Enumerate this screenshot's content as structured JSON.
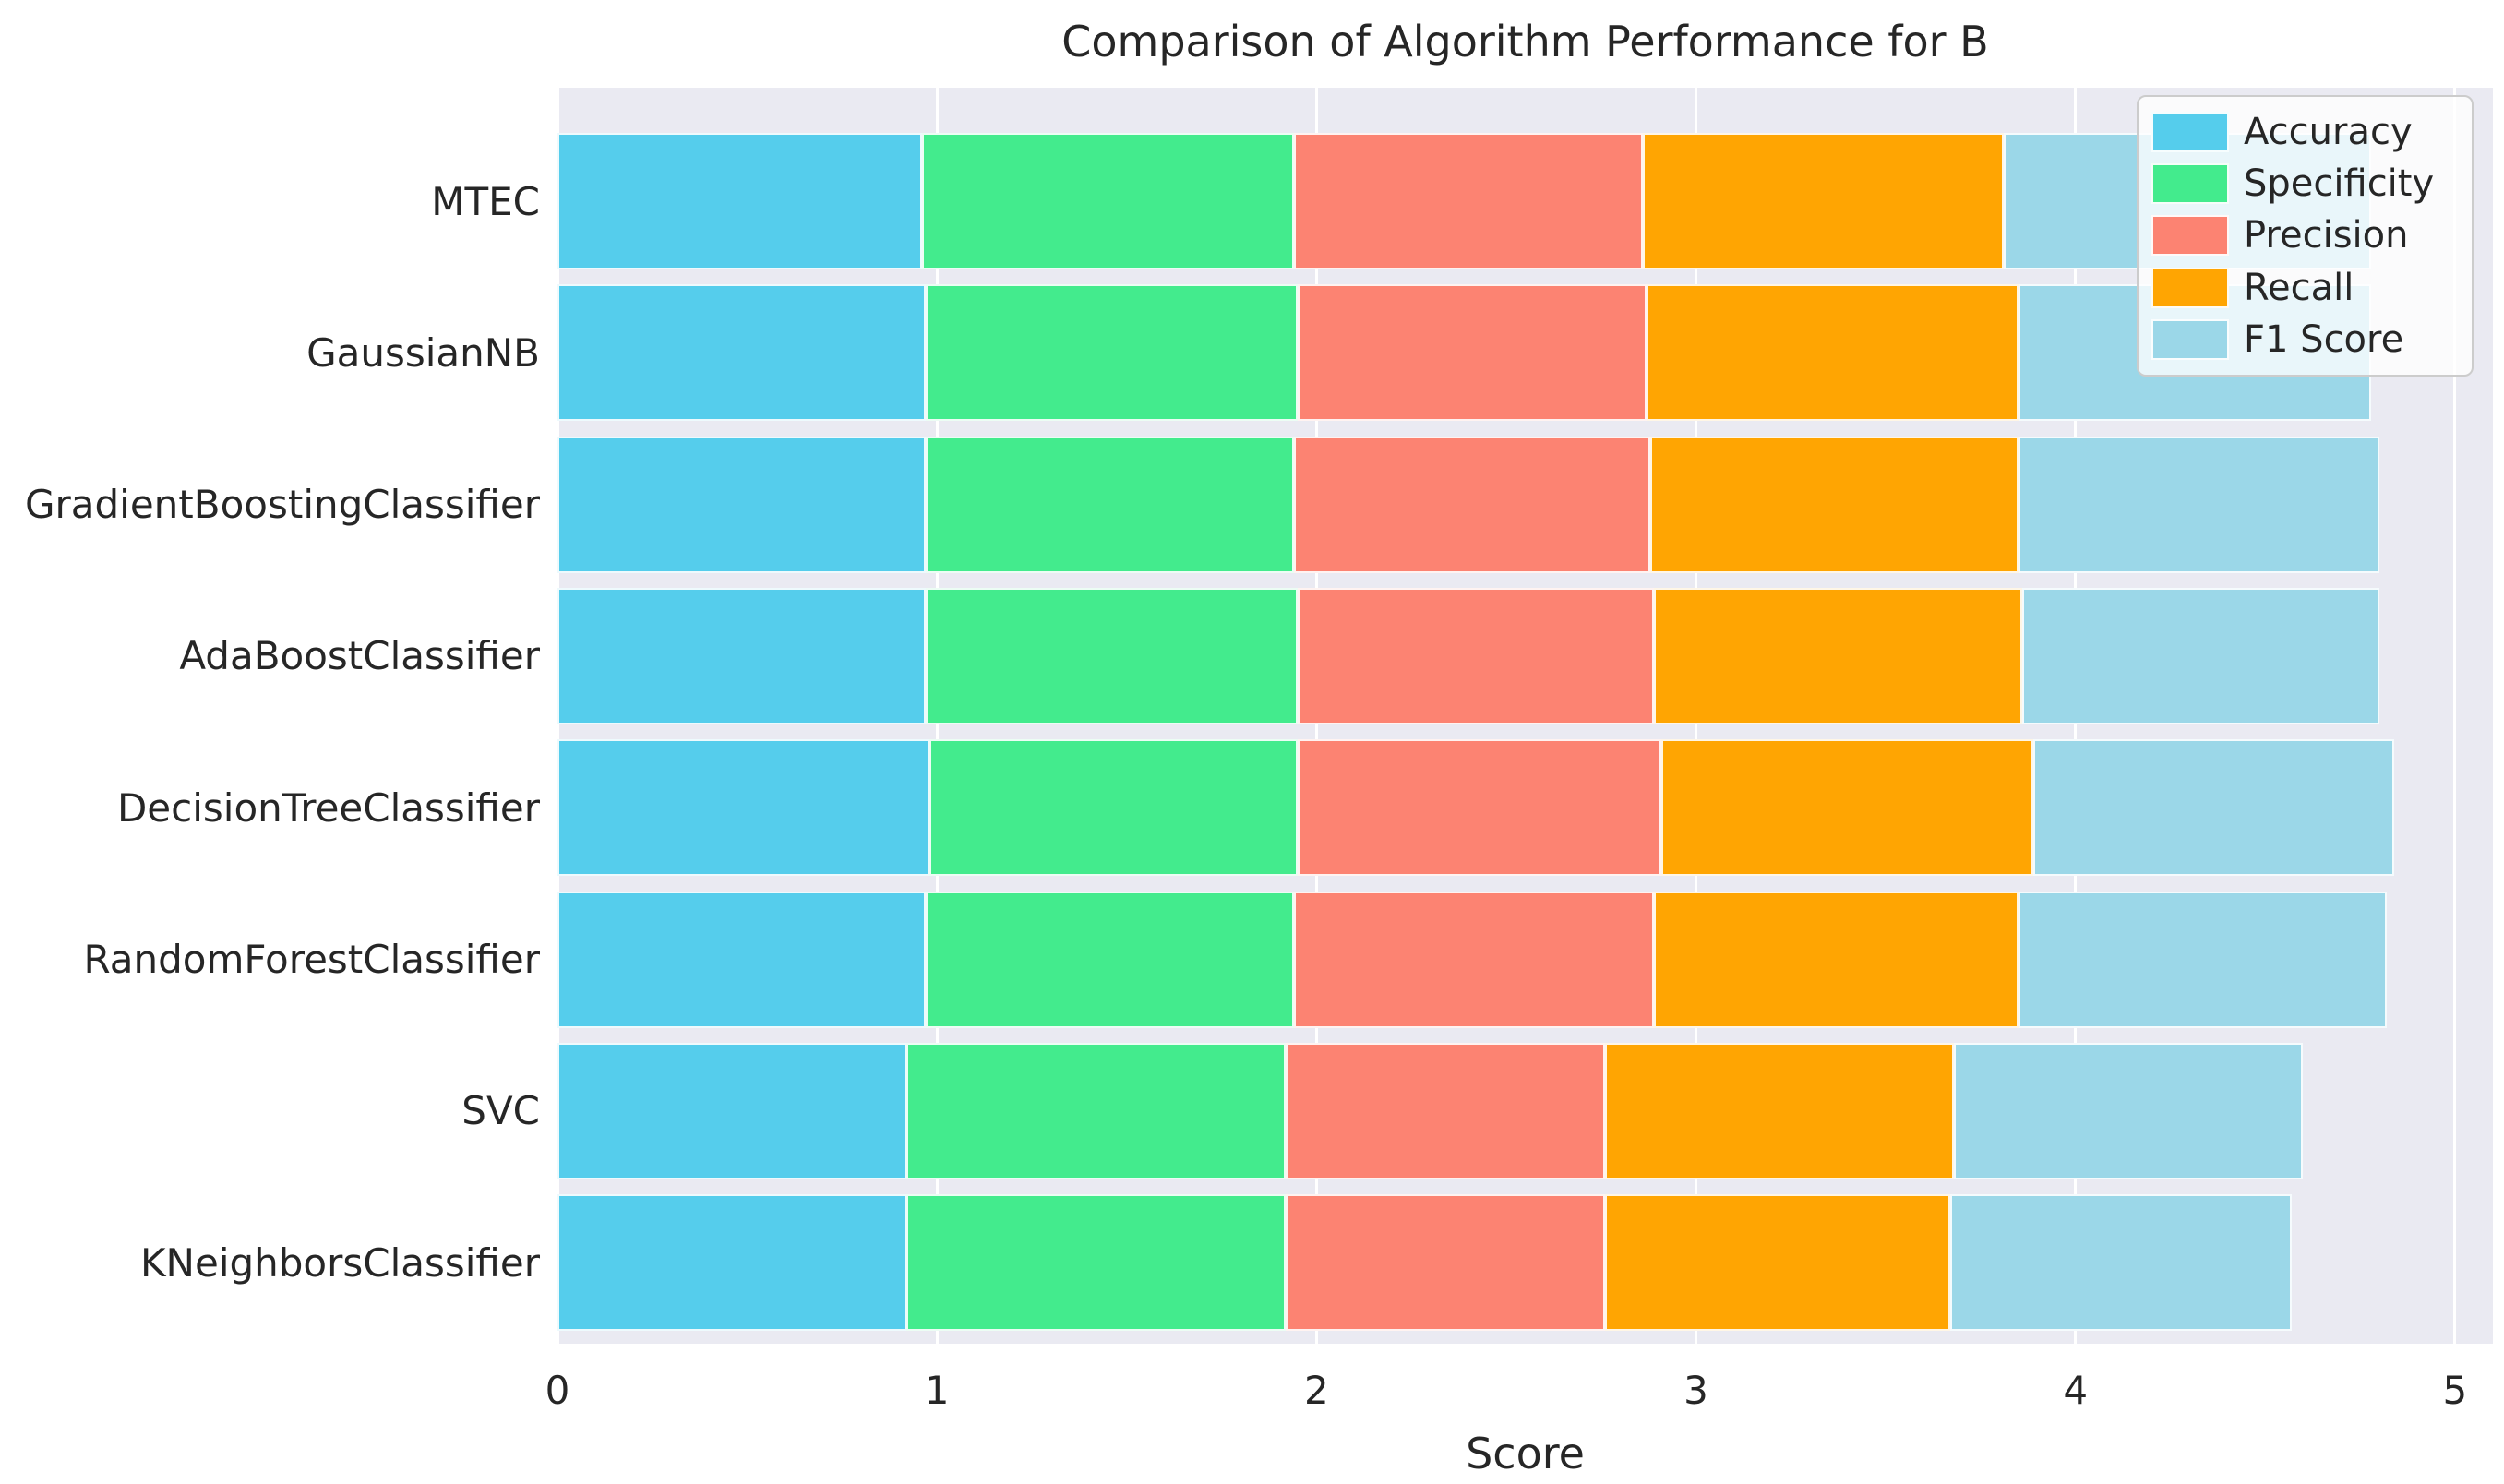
{
  "title": "Comparison of Algorithm Performance for B",
  "xlabel": "Score",
  "plot_style": {
    "axes_background": "#eaeaf2",
    "grid_color": "#ffffff",
    "text_color": "#262626",
    "figure_background": "#ffffff"
  },
  "legend": {
    "position": "upper right",
    "entries": [
      {
        "label": "Accuracy",
        "color": "#55cdec"
      },
      {
        "label": "Specificity",
        "color": "#43eb8d"
      },
      {
        "label": "Precision",
        "color": "#fc8372"
      },
      {
        "label": "Recall",
        "color": "#ffa502"
      },
      {
        "label": "F1 Score",
        "color": "#9bd7e8"
      }
    ]
  },
  "chart_data": {
    "type": "bar",
    "orientation": "horizontal",
    "stacked": true,
    "title": "Comparison of Algorithm Performance for B",
    "xlabel": "Score",
    "ylabel": "",
    "xlim": [
      0,
      5.1
    ],
    "x_ticks": [
      0,
      1,
      2,
      3,
      4,
      5
    ],
    "grid": true,
    "legend_position": "upper right",
    "categories": [
      "MTEC",
      "GaussianNB",
      "GradientBoostingClassifier",
      "AdaBoostClassifier",
      "DecisionTreeClassifier",
      "RandomForestClassifier",
      "SVC",
      "KNeighborsClassifier"
    ],
    "series": [
      {
        "name": "Accuracy",
        "color": "#55cdec",
        "values": [
          0.96,
          0.97,
          0.97,
          0.97,
          0.98,
          0.97,
          0.92,
          0.92
        ]
      },
      {
        "name": "Specificity",
        "color": "#43eb8d",
        "values": [
          0.98,
          0.98,
          0.97,
          0.98,
          0.97,
          0.97,
          1.0,
          1.0
        ]
      },
      {
        "name": "Precision",
        "color": "#fc8372",
        "values": [
          0.92,
          0.92,
          0.94,
          0.94,
          0.96,
          0.95,
          0.84,
          0.84
        ]
      },
      {
        "name": "Recall",
        "color": "#ffa502",
        "values": [
          0.95,
          0.98,
          0.97,
          0.97,
          0.98,
          0.96,
          0.92,
          0.91
        ]
      },
      {
        "name": "F1 Score",
        "color": "#9bd7e8",
        "values": [
          0.97,
          0.93,
          0.95,
          0.94,
          0.95,
          0.97,
          0.92,
          0.9
        ]
      }
    ]
  }
}
